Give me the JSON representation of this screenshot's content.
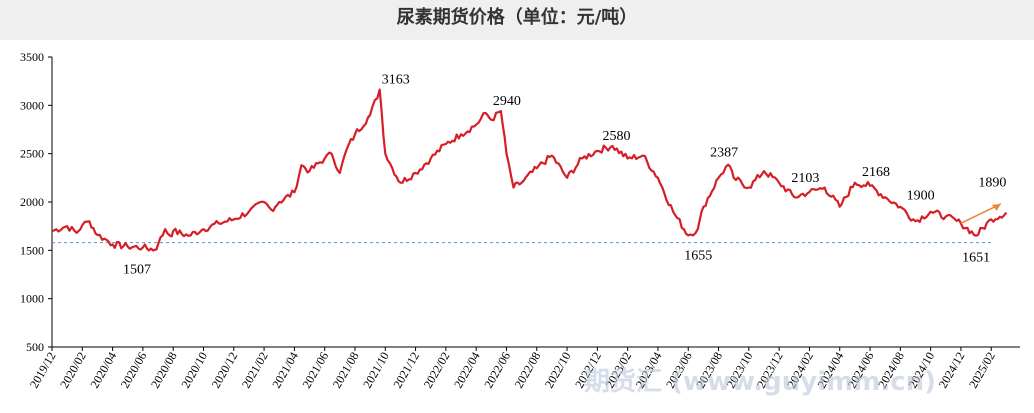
{
  "title": "尿素期货价格（单位：元/吨）",
  "watermark": "期货汇 (www.guyimm.cn)",
  "colors": {
    "series": "#d51f26",
    "reference": "#5b8fd6",
    "arrow": "#e8893a",
    "title_bg": "#efefef"
  },
  "chart_data": {
    "type": "line",
    "title": "尿素期货价格（单位：元/吨）",
    "xlabel": "",
    "ylabel": "",
    "ylim": [
      500,
      3500
    ],
    "y_ticks": [
      500,
      1000,
      1500,
      2000,
      2500,
      3000,
      3500
    ],
    "x_range": [
      "2019-12",
      "2025-03"
    ],
    "x_tick_labels": [
      "2019/12",
      "2020/02",
      "2020/04",
      "2020/06",
      "2020/08",
      "2020/10",
      "2020/12",
      "2021/02",
      "2021/04",
      "2021/06",
      "2021/08",
      "2021/10",
      "2021/12",
      "2022/02",
      "2022/04",
      "2022/06",
      "2022/08",
      "2022/10",
      "2022/12",
      "2023/02",
      "2023/04",
      "2023/06",
      "2023/08",
      "2023/10",
      "2023/12",
      "2024/02",
      "2024/04",
      "2024/06",
      "2024/08",
      "2024/10",
      "2024/12",
      "2025/02"
    ],
    "grid": false,
    "legend": "none",
    "reference_line": 1580,
    "series": [
      {
        "color": "#d51f26",
        "points": [
          [
            "2019-12",
            1700
          ],
          [
            "2020-01",
            1750
          ],
          [
            "2020-01-20",
            1680
          ],
          [
            "2020-02",
            1760
          ],
          [
            "2020-02-15",
            1800
          ],
          [
            "2020-03",
            1660
          ],
          [
            "2020-03-15",
            1620
          ],
          [
            "2020-04",
            1560
          ],
          [
            "2020-05",
            1540
          ],
          [
            "2020-06",
            1530
          ],
          [
            "2020-06-25",
            1507
          ],
          [
            "2020-07",
            1560
          ],
          [
            "2020-07-15",
            1720
          ],
          [
            "2020-07-25",
            1650
          ],
          [
            "2020-08",
            1700
          ],
          [
            "2020-09",
            1650
          ],
          [
            "2020-10",
            1720
          ],
          [
            "2020-11",
            1780
          ],
          [
            "2020-12",
            1820
          ],
          [
            "2021-01",
            1900
          ],
          [
            "2021-02",
            2000
          ],
          [
            "2021-02-15",
            1920
          ],
          [
            "2021-03",
            2000
          ],
          [
            "2021-04",
            2100
          ],
          [
            "2021-04-15",
            2380
          ],
          [
            "2021-05",
            2320
          ],
          [
            "2021-06",
            2450
          ],
          [
            "2021-06-15",
            2500
          ],
          [
            "2021-07",
            2300
          ],
          [
            "2021-07-15",
            2550
          ],
          [
            "2021-08",
            2700
          ],
          [
            "2021-09",
            2900
          ],
          [
            "2021-09-20",
            3163
          ],
          [
            "2021-10",
            2500
          ],
          [
            "2021-10-15",
            2350
          ],
          [
            "2021-11",
            2200
          ],
          [
            "2021-12",
            2300
          ],
          [
            "2022-01",
            2450
          ],
          [
            "2022-02",
            2600
          ],
          [
            "2022-03",
            2700
          ],
          [
            "2022-04",
            2800
          ],
          [
            "2022-04-20",
            2920
          ],
          [
            "2022-05",
            2850
          ],
          [
            "2022-05-20",
            2940
          ],
          [
            "2022-06",
            2500
          ],
          [
            "2022-06-15",
            2150
          ],
          [
            "2022-07",
            2200
          ],
          [
            "2022-08",
            2350
          ],
          [
            "2022-09",
            2480
          ],
          [
            "2022-10",
            2250
          ],
          [
            "2022-11",
            2450
          ],
          [
            "2022-12",
            2530
          ],
          [
            "2023-01",
            2580
          ],
          [
            "2023-02",
            2450
          ],
          [
            "2023-03",
            2480
          ],
          [
            "2023-04",
            2250
          ],
          [
            "2023-05",
            1900
          ],
          [
            "2023-06",
            1655
          ],
          [
            "2023-06-20",
            1720
          ],
          [
            "2023-07",
            1950
          ],
          [
            "2023-08",
            2250
          ],
          [
            "2023-08-20",
            2387
          ],
          [
            "2023-09",
            2250
          ],
          [
            "2023-10",
            2150
          ],
          [
            "2023-11",
            2320
          ],
          [
            "2023-12",
            2200
          ],
          [
            "2024-01",
            2050
          ],
          [
            "2024-02",
            2103
          ],
          [
            "2024-03",
            2150
          ],
          [
            "2024-04",
            1950
          ],
          [
            "2024-05",
            2200
          ],
          [
            "2024-06",
            2168
          ],
          [
            "2024-07",
            2050
          ],
          [
            "2024-08",
            1950
          ],
          [
            "2024-09",
            1800
          ],
          [
            "2024-10",
            1900
          ],
          [
            "2024-11",
            1850
          ],
          [
            "2024-12",
            1780
          ],
          [
            "2025-01",
            1651
          ],
          [
            "2025-02",
            1820
          ],
          [
            "2025-03",
            1890
          ]
        ]
      }
    ],
    "annotations": [
      {
        "label": "3163",
        "x": "2021-09-20",
        "y": 3163
      },
      {
        "label": "2940",
        "x": "2022-05-20",
        "y": 2940
      },
      {
        "label": "2580",
        "x": "2023-01",
        "y": 2580
      },
      {
        "label": "2387",
        "x": "2023-08-20",
        "y": 2387
      },
      {
        "label": "2103",
        "x": "2024-02",
        "y": 2103
      },
      {
        "label": "2168",
        "x": "2024-06",
        "y": 2168
      },
      {
        "label": "1900",
        "x": "2024-10",
        "y": 1900
      },
      {
        "label": "1890",
        "x": "2025-03",
        "y": 1890
      },
      {
        "label": "1507",
        "x": "2020-06-25",
        "y": 1507
      },
      {
        "label": "1655",
        "x": "2023-06",
        "y": 1655
      },
      {
        "label": "1651",
        "x": "2025-01",
        "y": 1651
      }
    ]
  }
}
